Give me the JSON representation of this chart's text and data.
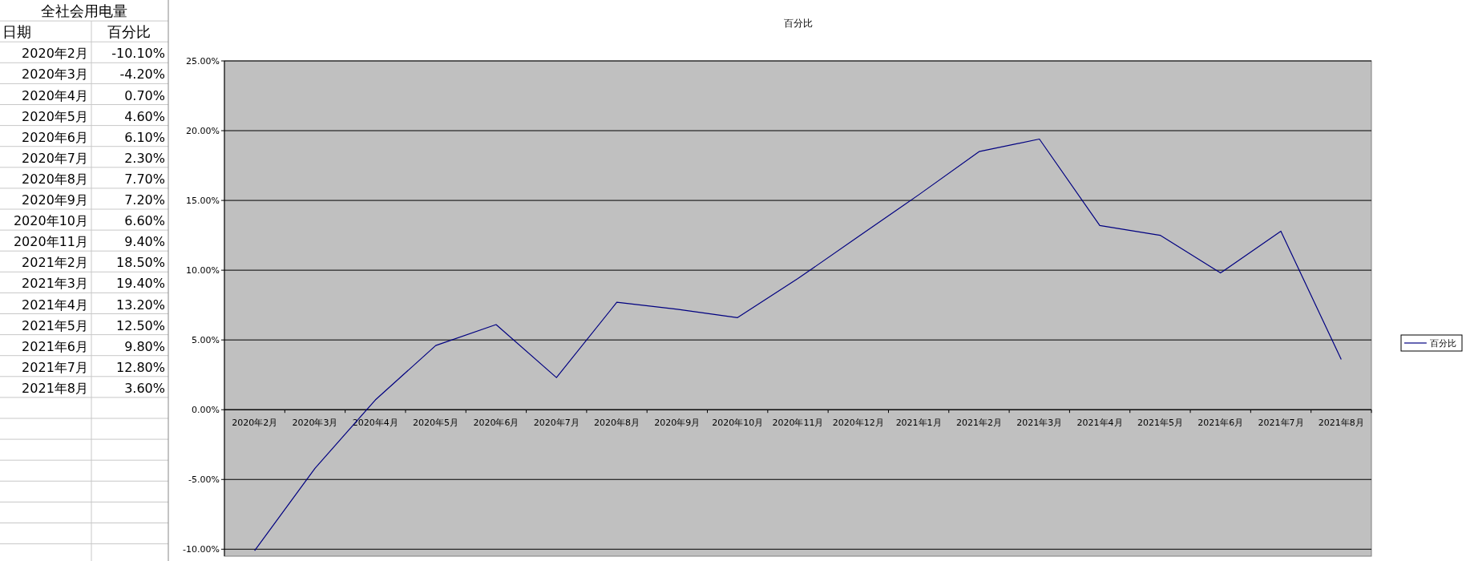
{
  "chart_data": {
    "type": "line",
    "title": "百分比",
    "categories": [
      "2020年2月",
      "2020年3月",
      "2020年4月",
      "2020年5月",
      "2020年6月",
      "2020年7月",
      "2020年8月",
      "2020年9月",
      "2020年10月",
      "2020年11月",
      "2020年12月",
      "2021年1月",
      "2021年2月",
      "2021年3月",
      "2021年4月",
      "2021年5月",
      "2021年6月",
      "2021年7月",
      "2021年8月"
    ],
    "series": [
      {
        "name": "百分比",
        "color": "#000080",
        "values": [
          -10.1,
          -4.2,
          0.7,
          4.6,
          6.1,
          2.3,
          7.7,
          7.2,
          6.6,
          9.4,
          12.4,
          15.4,
          18.5,
          19.4,
          13.2,
          12.5,
          9.8,
          12.8,
          3.6
        ]
      }
    ],
    "annotations": [
      "全社会用电量",
      "日期",
      "百分比",
      "2020年2月",
      "-10.10%",
      "2020年3月",
      "-4.20%",
      "2020年4月",
      "0.70%",
      "2020年5月",
      "4.60%",
      "2020年6月",
      "6.10%",
      "2020年7月",
      "2.30%",
      "2020年8月",
      "7.70%",
      "2020年9月",
      "7.20%",
      "2020年10月",
      "6.60%",
      "2020年11月",
      "9.40%",
      "2021年2月",
      "18.50%",
      "2021年3月",
      "19.40%",
      "2021年4月",
      "13.20%",
      "2021年5月",
      "12.50%",
      "2021年6月",
      "9.80%",
      "2021年7月",
      "12.80%",
      "2021年8月",
      "3.60%"
    ],
    "ylim": [
      -10.5,
      25
    ],
    "yticks": [
      {
        "value": -10,
        "label": "-10.00%"
      },
      {
        "value": -5,
        "label": "-5.00%"
      },
      {
        "value": 0,
        "label": "0.00%"
      },
      {
        "value": 5,
        "label": "5.00%"
      },
      {
        "value": 10,
        "label": "10.00%"
      },
      {
        "value": 15,
        "label": "15.00%"
      },
      {
        "value": 20,
        "label": "20.00%"
      },
      {
        "value": 25,
        "label": "25.00%"
      }
    ],
    "grid": "y",
    "legend": "right"
  }
}
